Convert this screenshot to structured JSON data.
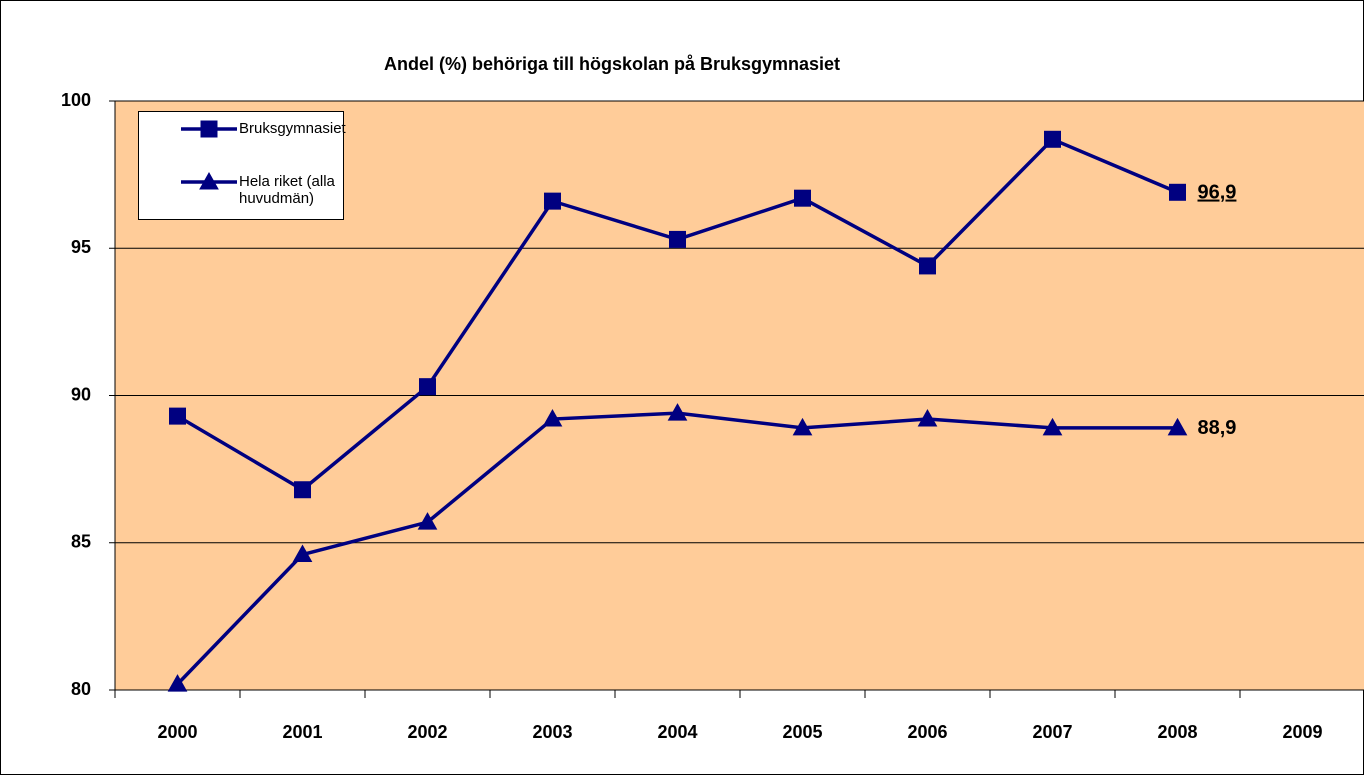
{
  "chart_data": {
    "type": "line",
    "title": "Andel (%) behöriga till högskolan på Bruksgymnasiet",
    "categories": [
      "2000",
      "2001",
      "2002",
      "2003",
      "2004",
      "2005",
      "2006",
      "2007",
      "2008",
      "2009"
    ],
    "series": [
      {
        "name": "Bruksgymnasiet",
        "color": "#000080",
        "marker": "square",
        "values": [
          89.3,
          86.8,
          90.3,
          96.6,
          95.3,
          96.7,
          94.4,
          98.7,
          96.9,
          null
        ],
        "value_labels": [
          null,
          null,
          null,
          null,
          null,
          null,
          null,
          null,
          "96,9",
          null
        ]
      },
      {
        "name": "Hela riket (alla huvudmän)",
        "color": "#000080",
        "marker": "triangle",
        "values": [
          80.2,
          84.6,
          85.7,
          89.2,
          89.4,
          88.9,
          89.2,
          88.9,
          88.9,
          null
        ],
        "value_labels": [
          null,
          null,
          null,
          null,
          null,
          null,
          null,
          null,
          "88,9",
          null
        ]
      }
    ],
    "ylim": [
      80,
      100
    ],
    "yticks": [
      80,
      85,
      90,
      95,
      100
    ],
    "grid": true,
    "legend": "upper left",
    "plot_background": "#ffcc99"
  }
}
